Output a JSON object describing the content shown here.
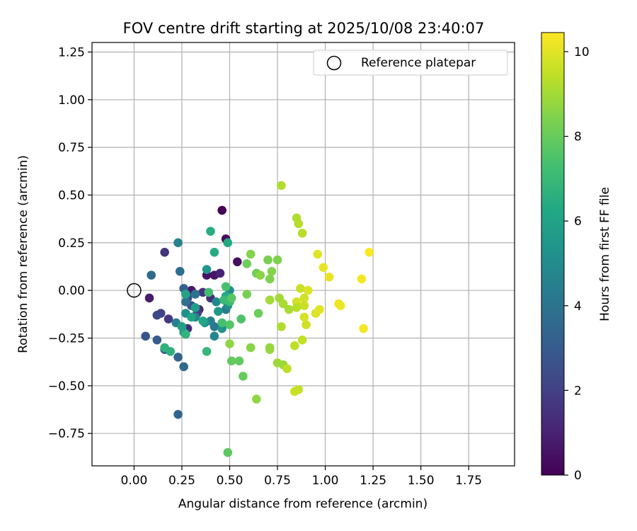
{
  "chart_data": {
    "type": "scatter",
    "title": "FOV centre drift starting at 2025/10/08 23:40:07",
    "xlabel": "Angular distance from reference (arcmin)",
    "ylabel": "Rotation from reference (arcmin)",
    "xlim": [
      -0.22,
      1.99
    ],
    "ylim": [
      -0.92,
      1.3
    ],
    "xticks": [
      0.0,
      0.25,
      0.5,
      0.75,
      1.0,
      1.25,
      1.5,
      1.75
    ],
    "xtick_labels": [
      "0.00",
      "0.25",
      "0.50",
      "0.75",
      "1.00",
      "1.25",
      "1.50",
      "1.75"
    ],
    "yticks": [
      -0.75,
      -0.5,
      -0.25,
      0.0,
      0.25,
      0.5,
      0.75,
      1.0,
      1.25
    ],
    "ytick_labels": [
      "−0.75",
      "−0.50",
      "−0.25",
      "0.00",
      "0.25",
      "0.50",
      "0.75",
      "1.00",
      "1.25"
    ],
    "grid": true,
    "legend": {
      "position": "top-right",
      "entries": [
        "Reference platepar"
      ]
    },
    "reference_point": {
      "x": 0.0,
      "y": 0.0,
      "label": "Reference platepar"
    },
    "colorbar": {
      "label": "Hours from first FF file",
      "colormap": "viridis",
      "range": [
        0,
        10.45
      ],
      "ticks": [
        0,
        2,
        4,
        6,
        8,
        10
      ],
      "tick_labels": [
        "0",
        "2",
        "4",
        "6",
        "8",
        "10"
      ]
    },
    "series": [
      {
        "name": "drift",
        "points": [
          [
            0.46,
            0.42,
            0.1
          ],
          [
            0.48,
            0.27,
            0.3
          ],
          [
            0.54,
            0.15,
            0.4
          ],
          [
            0.38,
            0.08,
            0.5
          ],
          [
            0.42,
            0.08,
            0.6
          ],
          [
            0.3,
            0.0,
            0.7
          ],
          [
            0.08,
            -0.04,
            0.8
          ],
          [
            0.45,
            0.09,
            1.0
          ],
          [
            0.34,
            -0.1,
            1.2
          ],
          [
            0.28,
            -0.2,
            1.3
          ],
          [
            0.4,
            -0.04,
            1.4
          ],
          [
            0.36,
            -0.01,
            1.5
          ],
          [
            0.16,
            0.2,
            1.6
          ],
          [
            0.18,
            -0.15,
            1.7
          ],
          [
            0.33,
            -0.12,
            1.9
          ],
          [
            0.14,
            -0.12,
            2.1
          ],
          [
            0.12,
            -0.13,
            2.3
          ],
          [
            0.28,
            -0.04,
            2.4
          ],
          [
            0.3,
            -0.08,
            2.6
          ],
          [
            0.06,
            -0.24,
            2.8
          ],
          [
            0.12,
            -0.26,
            3.0
          ],
          [
            0.16,
            -0.31,
            3.1
          ],
          [
            0.26,
            0.01,
            3.2
          ],
          [
            0.23,
            -0.35,
            3.3
          ],
          [
            0.23,
            -0.65,
            3.4
          ],
          [
            0.26,
            -0.4,
            3.5
          ],
          [
            0.09,
            0.08,
            3.6
          ],
          [
            0.24,
            0.1,
            3.7
          ],
          [
            0.27,
            -0.06,
            3.9
          ],
          [
            0.32,
            -0.02,
            4.0
          ],
          [
            0.42,
            -0.19,
            4.2
          ],
          [
            0.48,
            -0.1,
            4.3
          ],
          [
            0.4,
            -0.16,
            4.4
          ],
          [
            0.22,
            -0.17,
            4.5
          ],
          [
            0.23,
            0.25,
            4.6
          ],
          [
            0.32,
            -0.14,
            4.7
          ],
          [
            0.42,
            -0.24,
            4.8
          ],
          [
            0.43,
            -0.06,
            4.9
          ],
          [
            0.49,
            -0.08,
            5.0
          ],
          [
            0.5,
            0.0,
            5.1
          ],
          [
            0.27,
            -0.12,
            5.2
          ],
          [
            0.46,
            -0.2,
            5.3
          ],
          [
            0.37,
            -0.17,
            5.4
          ],
          [
            0.38,
            0.11,
            5.5
          ],
          [
            0.44,
            -0.11,
            5.6
          ],
          [
            0.26,
            -0.22,
            5.7
          ],
          [
            0.32,
            -0.09,
            5.8
          ],
          [
            0.25,
            -0.19,
            5.9
          ],
          [
            0.27,
            -0.02,
            6.0
          ],
          [
            0.3,
            -0.14,
            6.1
          ],
          [
            0.36,
            -0.16,
            6.2
          ],
          [
            0.48,
            -0.03,
            6.3
          ],
          [
            0.49,
            0.25,
            6.3
          ],
          [
            0.42,
            0.2,
            6.4
          ],
          [
            0.4,
            0.31,
            6.5
          ],
          [
            0.19,
            -0.32,
            6.6
          ],
          [
            0.16,
            -0.3,
            6.7
          ],
          [
            0.27,
            -0.23,
            6.8
          ],
          [
            0.38,
            -0.32,
            6.9
          ],
          [
            0.47,
            -0.05,
            7.0
          ],
          [
            0.5,
            -0.06,
            7.1
          ],
          [
            0.39,
            -0.01,
            7.2
          ],
          [
            0.46,
            -0.17,
            7.3
          ],
          [
            0.48,
            0.02,
            7.4
          ],
          [
            0.56,
            -0.15,
            7.5
          ],
          [
            0.5,
            -0.18,
            7.6
          ],
          [
            0.51,
            -0.04,
            7.7
          ],
          [
            0.49,
            -0.85,
            7.8
          ],
          [
            0.51,
            -0.37,
            7.9
          ],
          [
            0.55,
            -0.37,
            7.9
          ],
          [
            0.57,
            -0.45,
            8.0
          ],
          [
            0.65,
            -0.12,
            8.1
          ],
          [
            0.59,
            0.14,
            8.1
          ],
          [
            0.64,
            0.09,
            8.2
          ],
          [
            0.59,
            -0.02,
            8.3
          ],
          [
            0.7,
            0.16,
            8.3
          ],
          [
            0.71,
            0.06,
            8.4
          ],
          [
            0.75,
            0.16,
            8.4
          ],
          [
            0.61,
            0.19,
            8.5
          ],
          [
            0.72,
            0.1,
            8.5
          ],
          [
            0.66,
            0.08,
            8.6
          ],
          [
            0.61,
            -0.3,
            8.6
          ],
          [
            0.5,
            -0.28,
            8.7
          ],
          [
            0.64,
            -0.57,
            8.7
          ],
          [
            0.71,
            -0.3,
            8.8
          ],
          [
            0.71,
            -0.31,
            8.8
          ],
          [
            0.75,
            -0.38,
            8.9
          ],
          [
            0.78,
            -0.39,
            8.9
          ],
          [
            0.71,
            -0.05,
            9.0
          ],
          [
            0.76,
            -0.04,
            9.0
          ],
          [
            0.78,
            -0.07,
            9.1
          ],
          [
            0.81,
            -0.1,
            9.1
          ],
          [
            0.77,
            0.55,
            9.2
          ],
          [
            0.85,
            0.38,
            9.2
          ],
          [
            0.86,
            0.35,
            9.3
          ],
          [
            0.88,
            0.3,
            9.3
          ],
          [
            0.8,
            -0.41,
            9.4
          ],
          [
            0.84,
            -0.29,
            9.4
          ],
          [
            0.88,
            -0.26,
            9.5
          ],
          [
            0.86,
            -0.52,
            9.5
          ],
          [
            0.84,
            -0.53,
            9.6
          ],
          [
            0.87,
            0.01,
            9.6
          ],
          [
            0.89,
            -0.04,
            9.7
          ],
          [
            0.9,
            -0.18,
            9.7
          ],
          [
            0.85,
            -0.06,
            9.8
          ],
          [
            0.89,
            -0.14,
            9.8
          ],
          [
            0.91,
            0.0,
            9.9
          ],
          [
            0.95,
            -0.12,
            9.9
          ],
          [
            0.96,
            0.19,
            10.0
          ],
          [
            0.97,
            -0.1,
            10.0
          ],
          [
            0.99,
            0.12,
            10.1
          ],
          [
            1.02,
            0.07,
            10.1
          ],
          [
            1.07,
            -0.07,
            10.2
          ],
          [
            1.08,
            -0.08,
            10.2
          ],
          [
            1.19,
            0.06,
            10.3
          ],
          [
            1.2,
            -0.2,
            10.3
          ],
          [
            1.23,
            0.2,
            10.4
          ],
          [
            0.89,
            -0.08,
            9.6
          ],
          [
            0.85,
            -0.09,
            9.3
          ],
          [
            0.77,
            -0.19,
            9.2
          ]
        ]
      }
    ]
  }
}
